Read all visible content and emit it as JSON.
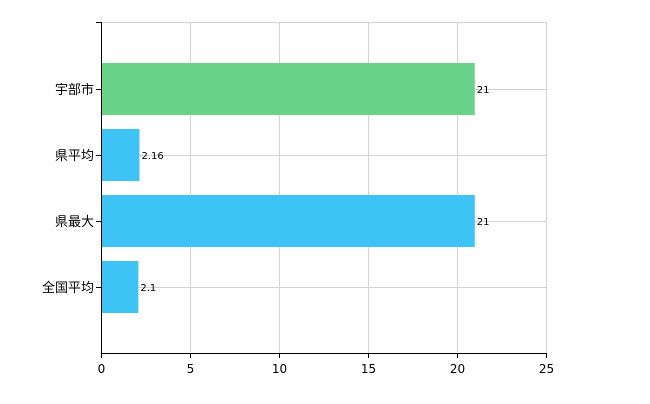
{
  "chart_data": {
    "type": "bar",
    "orientation": "horizontal",
    "categories": [
      "宇部市",
      "県平均",
      "県最大",
      "全国平均"
    ],
    "values": [
      21,
      2.16,
      21,
      2.1
    ],
    "value_labels": [
      "21",
      "2.16",
      "21",
      "2.1"
    ],
    "bar_colors": [
      "#6ad38a",
      "#3ec3f5",
      "#3ec3f5",
      "#3ec3f5"
    ],
    "title": "",
    "xlabel": "",
    "ylabel": "",
    "xlim": [
      0,
      25
    ],
    "x_ticks": [
      0,
      5,
      10,
      15,
      20,
      25
    ],
    "x_tick_labels": [
      "0",
      "5",
      "10",
      "15",
      "20",
      "25"
    ],
    "grid": true,
    "legend": "none"
  },
  "colors": {
    "grid": "#d3d3d3",
    "axis": "#000000",
    "highlight_bar": "#6ad38a",
    "bar": "#3ec3f5"
  }
}
